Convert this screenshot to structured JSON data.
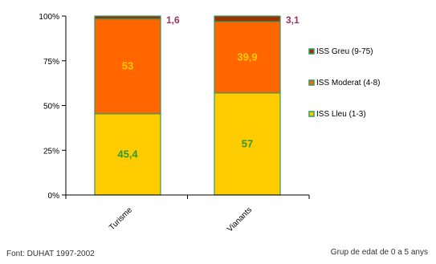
{
  "chart_data": {
    "type": "bar",
    "stacked": true,
    "percent_stacked": true,
    "categories": [
      "Turisme",
      "Vianants"
    ],
    "series": [
      {
        "name": "ISS  Lleu (1-3)",
        "values": [
          45.4,
          57
        ],
        "color": "#FFCC00",
        "label_color": "#339933",
        "data_labels": [
          "45,4",
          "57"
        ]
      },
      {
        "name": "ISS Moderat (4-8)",
        "values": [
          53,
          39.9
        ],
        "color": "#FF6600",
        "label_color": "#FFCC00",
        "data_labels": [
          "53",
          "39,9"
        ]
      },
      {
        "name": "ISS Greu (9-75)",
        "values": [
          1.6,
          3.1
        ],
        "color": "#993300",
        "label_color": "#993366",
        "data_labels": [
          "1,6",
          "3,1"
        ]
      }
    ],
    "yticks": [
      "0%",
      "25%",
      "50%",
      "75%",
      "100%"
    ],
    "ylim": [
      0,
      100
    ],
    "legend_position": "right",
    "grid": false,
    "legend_marker_colors": {
      "border": "#339966"
    }
  },
  "footer": {
    "source": "Font: DUHAT 1997-2002",
    "note": "Grup de edat de 0 a 5 anys"
  }
}
